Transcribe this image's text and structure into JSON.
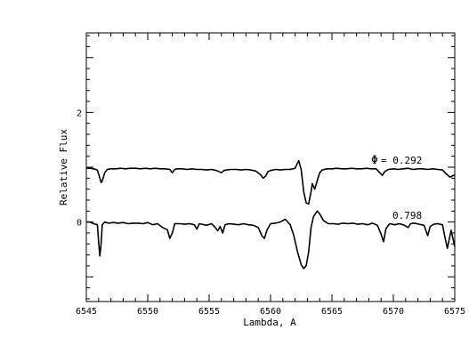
{
  "chart_data": {
    "type": "line",
    "title": "",
    "xlabel": "Lambda, A",
    "ylabel": "Relative Flux",
    "xlim": [
      6545,
      6575
    ],
    "ylim": [
      -1.45,
      3.45
    ],
    "grid": false,
    "legend": "none",
    "x_ticks": [
      6545,
      6550,
      6555,
      6560,
      6565,
      6570,
      6575
    ],
    "x_tick_labels": [
      "6545",
      "6550",
      "6555",
      "6560",
      "6565",
      "6570",
      "6575"
    ],
    "y_ticks": [
      0,
      2
    ],
    "y_tick_labels": [
      "0",
      "2"
    ],
    "annotations": [
      {
        "symbol": "Φ",
        "text": "= 0.292"
      },
      {
        "text": "0.798"
      }
    ],
    "series": [
      {
        "x": [
          6545.0,
          6545.3,
          6545.6,
          6545.9,
          6546.1,
          6546.2,
          6546.3,
          6546.5,
          6546.7,
          6547.0,
          6547.4,
          6547.8,
          6548.2,
          6548.6,
          6549.0,
          6549.4,
          6549.8,
          6550.2,
          6550.6,
          6551.0,
          6551.4,
          6551.8,
          6552.0,
          6552.2,
          6552.4,
          6552.8,
          6553.2,
          6553.6,
          6554.0,
          6554.4,
          6554.8,
          6555.2,
          6555.6,
          6556.0,
          6556.2,
          6556.4,
          6556.8,
          6557.2,
          6557.6,
          6558.0,
          6558.4,
          6558.8,
          6559.2,
          6559.4,
          6559.6,
          6559.8,
          6560.0,
          6560.4,
          6560.8,
          6561.2,
          6561.6,
          6562.0,
          6562.2,
          6562.3,
          6562.5,
          6562.7,
          6562.9,
          6563.1,
          6563.3,
          6563.4,
          6563.6,
          6563.8,
          6564.0,
          6564.2,
          6564.6,
          6565.0,
          6565.4,
          6565.8,
          6566.2,
          6566.6,
          6567.0,
          6567.4,
          6567.8,
          6568.2,
          6568.6,
          6568.9,
          6569.1,
          6569.3,
          6569.6,
          6570.0,
          6570.4,
          6570.8,
          6571.2,
          6571.6,
          6572.0,
          6572.4,
          6572.8,
          6573.2,
          6573.6,
          6574.0,
          6574.3,
          6574.6,
          6575.0
        ],
        "y": [
          0.98,
          0.98,
          0.97,
          0.95,
          0.8,
          0.72,
          0.75,
          0.9,
          0.96,
          0.97,
          0.97,
          0.98,
          0.97,
          0.98,
          0.98,
          0.97,
          0.98,
          0.97,
          0.98,
          0.97,
          0.97,
          0.96,
          0.9,
          0.96,
          0.97,
          0.97,
          0.96,
          0.97,
          0.96,
          0.96,
          0.95,
          0.96,
          0.94,
          0.9,
          0.94,
          0.95,
          0.96,
          0.96,
          0.95,
          0.96,
          0.95,
          0.93,
          0.86,
          0.8,
          0.84,
          0.92,
          0.94,
          0.96,
          0.95,
          0.96,
          0.96,
          0.98,
          1.08,
          1.12,
          0.95,
          0.55,
          0.35,
          0.33,
          0.55,
          0.7,
          0.6,
          0.75,
          0.9,
          0.95,
          0.97,
          0.97,
          0.98,
          0.97,
          0.97,
          0.98,
          0.97,
          0.97,
          0.98,
          0.97,
          0.97,
          0.9,
          0.85,
          0.92,
          0.96,
          0.97,
          0.96,
          0.97,
          0.98,
          0.96,
          0.97,
          0.97,
          0.96,
          0.97,
          0.96,
          0.95,
          0.88,
          0.82,
          0.86
        ]
      },
      {
        "x": [
          6545.0,
          6545.3,
          6545.6,
          6545.9,
          6546.0,
          6546.1,
          6546.2,
          6546.3,
          6546.5,
          6546.8,
          6547.2,
          6547.6,
          6548.0,
          6548.4,
          6548.8,
          6549.2,
          6549.6,
          6550.0,
          6550.4,
          6550.8,
          6551.2,
          6551.6,
          6551.8,
          6552.0,
          6552.2,
          6552.6,
          6553.0,
          6553.4,
          6553.8,
          6554.0,
          6554.2,
          6554.4,
          6554.8,
          6555.2,
          6555.5,
          6555.7,
          6555.9,
          6556.1,
          6556.3,
          6556.6,
          6557.0,
          6557.4,
          6557.8,
          6558.2,
          6558.6,
          6559.0,
          6559.3,
          6559.5,
          6559.7,
          6560.0,
          6560.4,
          6560.8,
          6561.2,
          6561.6,
          6561.9,
          6562.2,
          6562.5,
          6562.7,
          6562.9,
          6563.1,
          6563.3,
          6563.5,
          6563.8,
          6564.0,
          6564.3,
          6564.7,
          6565.1,
          6565.5,
          6565.9,
          6566.3,
          6566.7,
          6567.1,
          6567.5,
          6567.9,
          6568.3,
          6568.7,
          6569.0,
          6569.2,
          6569.4,
          6569.7,
          6570.1,
          6570.5,
          6570.9,
          6571.2,
          6571.4,
          6571.7,
          6572.1,
          6572.5,
          6572.8,
          6573.0,
          6573.3,
          6573.6,
          6574.0,
          6574.2,
          6574.4,
          6574.7,
          6575.0
        ],
        "y": [
          0.0,
          0.0,
          -0.03,
          -0.05,
          -0.35,
          -0.62,
          -0.4,
          -0.05,
          0.0,
          -0.02,
          -0.01,
          -0.02,
          -0.01,
          -0.03,
          -0.02,
          -0.02,
          -0.03,
          -0.01,
          -0.05,
          -0.03,
          -0.1,
          -0.14,
          -0.3,
          -0.2,
          -0.03,
          -0.03,
          -0.04,
          -0.03,
          -0.05,
          -0.13,
          -0.03,
          -0.04,
          -0.06,
          -0.03,
          -0.1,
          -0.16,
          -0.08,
          -0.2,
          -0.05,
          -0.03,
          -0.04,
          -0.05,
          -0.03,
          -0.05,
          -0.06,
          -0.1,
          -0.25,
          -0.3,
          -0.15,
          -0.03,
          -0.02,
          0.0,
          0.05,
          -0.05,
          -0.25,
          -0.55,
          -0.78,
          -0.85,
          -0.8,
          -0.55,
          -0.1,
          0.1,
          0.2,
          0.15,
          0.03,
          -0.03,
          -0.03,
          -0.04,
          -0.02,
          -0.03,
          -0.02,
          -0.04,
          -0.03,
          -0.05,
          -0.02,
          -0.06,
          -0.22,
          -0.36,
          -0.12,
          -0.03,
          -0.05,
          -0.03,
          -0.06,
          -0.1,
          -0.03,
          -0.02,
          -0.04,
          -0.06,
          -0.25,
          -0.08,
          -0.04,
          -0.03,
          -0.05,
          -0.28,
          -0.48,
          -0.15,
          -0.45
        ]
      }
    ]
  }
}
